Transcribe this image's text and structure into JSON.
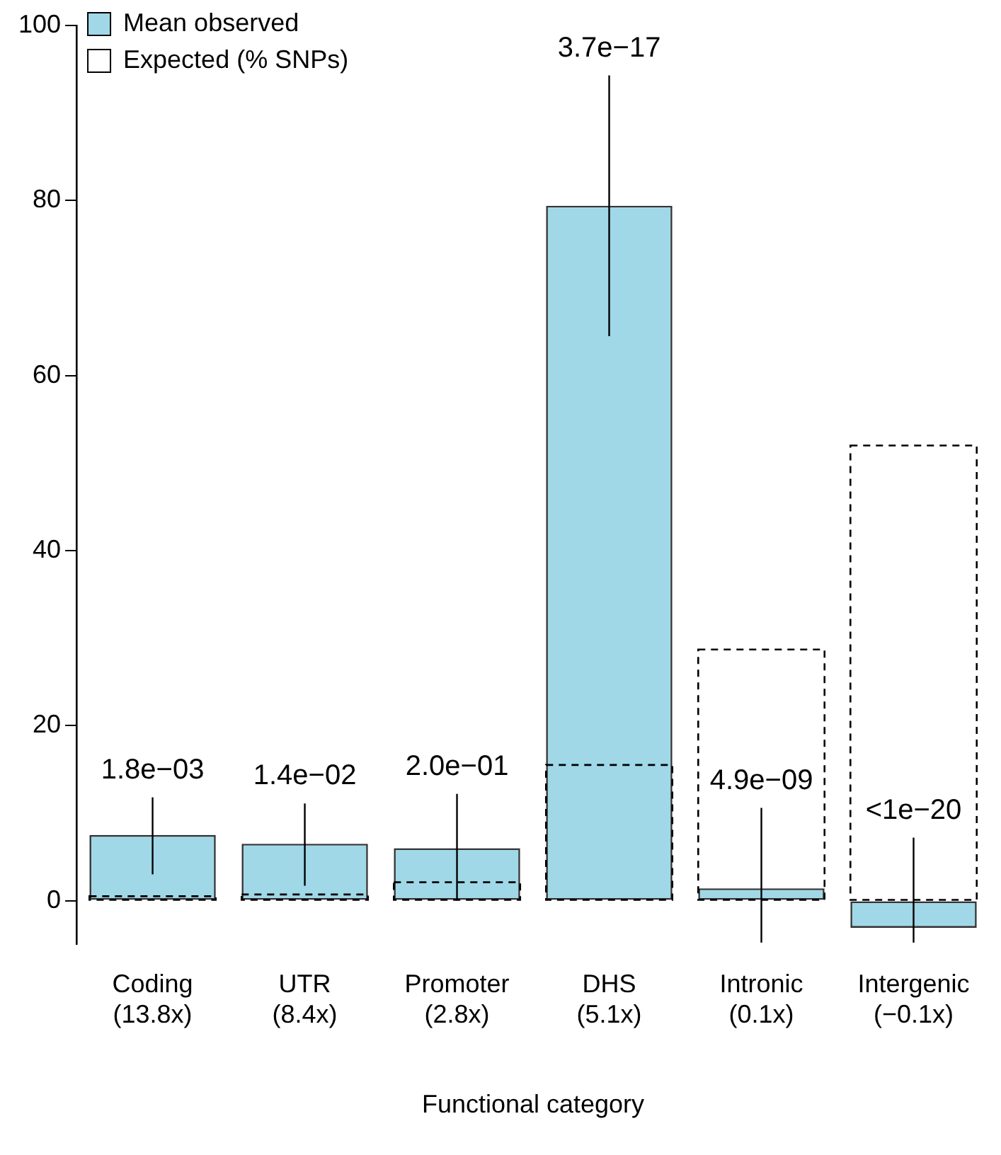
{
  "chart_data": {
    "type": "bar",
    "categories": [
      "Coding\n(13.8x)",
      "UTR\n(8.4x)",
      "Promoter\n(2.8x)",
      "DHS\n(5.1x)",
      "Intronic\n(0.1x)",
      "Intergenic\n(−0.1x)"
    ],
    "xlabel": "Functional category",
    "series": [
      {
        "name": "Mean observed",
        "color": "#a0d8e8",
        "values": [
          7.5,
          6.5,
          6.0,
          79.4,
          1.4,
          -3.1
        ],
        "errors": [
          [
            3.0,
            11.8
          ],
          [
            1.7,
            11.1
          ],
          [
            0,
            12.2
          ],
          [
            64.5,
            94.3
          ],
          [
            -4.8,
            10.6
          ],
          [
            -4.8,
            7.2
          ]
        ]
      },
      {
        "name": "Expected (% SNPs)",
        "color": "#000000",
        "line_style": "dashed",
        "values": [
          0.5,
          0.7,
          2.1,
          15.5,
          28.7,
          52.0
        ]
      }
    ],
    "annotations": [
      {
        "text": "1.8e−03",
        "x": "Coding\n(13.8x)",
        "y": 11.8
      },
      {
        "text": "1.4e−02",
        "x": "UTR\n(8.4x)",
        "y": 11.1
      },
      {
        "text": "2.0e−01",
        "x": "Promoter\n(2.8x)",
        "y": 12.2
      },
      {
        "text": "3.7e−17",
        "x": "DHS\n(5.1x)",
        "y": 94.3
      },
      {
        "text": "4.9e−09",
        "x": "Intronic\n(0.1x)",
        "y": 10.6
      },
      {
        "text": "<1e−20",
        "x": "Intergenic\n(−0.1x)",
        "y": 7.2
      }
    ],
    "ylim": [
      -5,
      100
    ],
    "yticks": [
      0,
      20,
      40,
      60,
      80,
      100
    ],
    "grid": false,
    "legend": "top left"
  }
}
